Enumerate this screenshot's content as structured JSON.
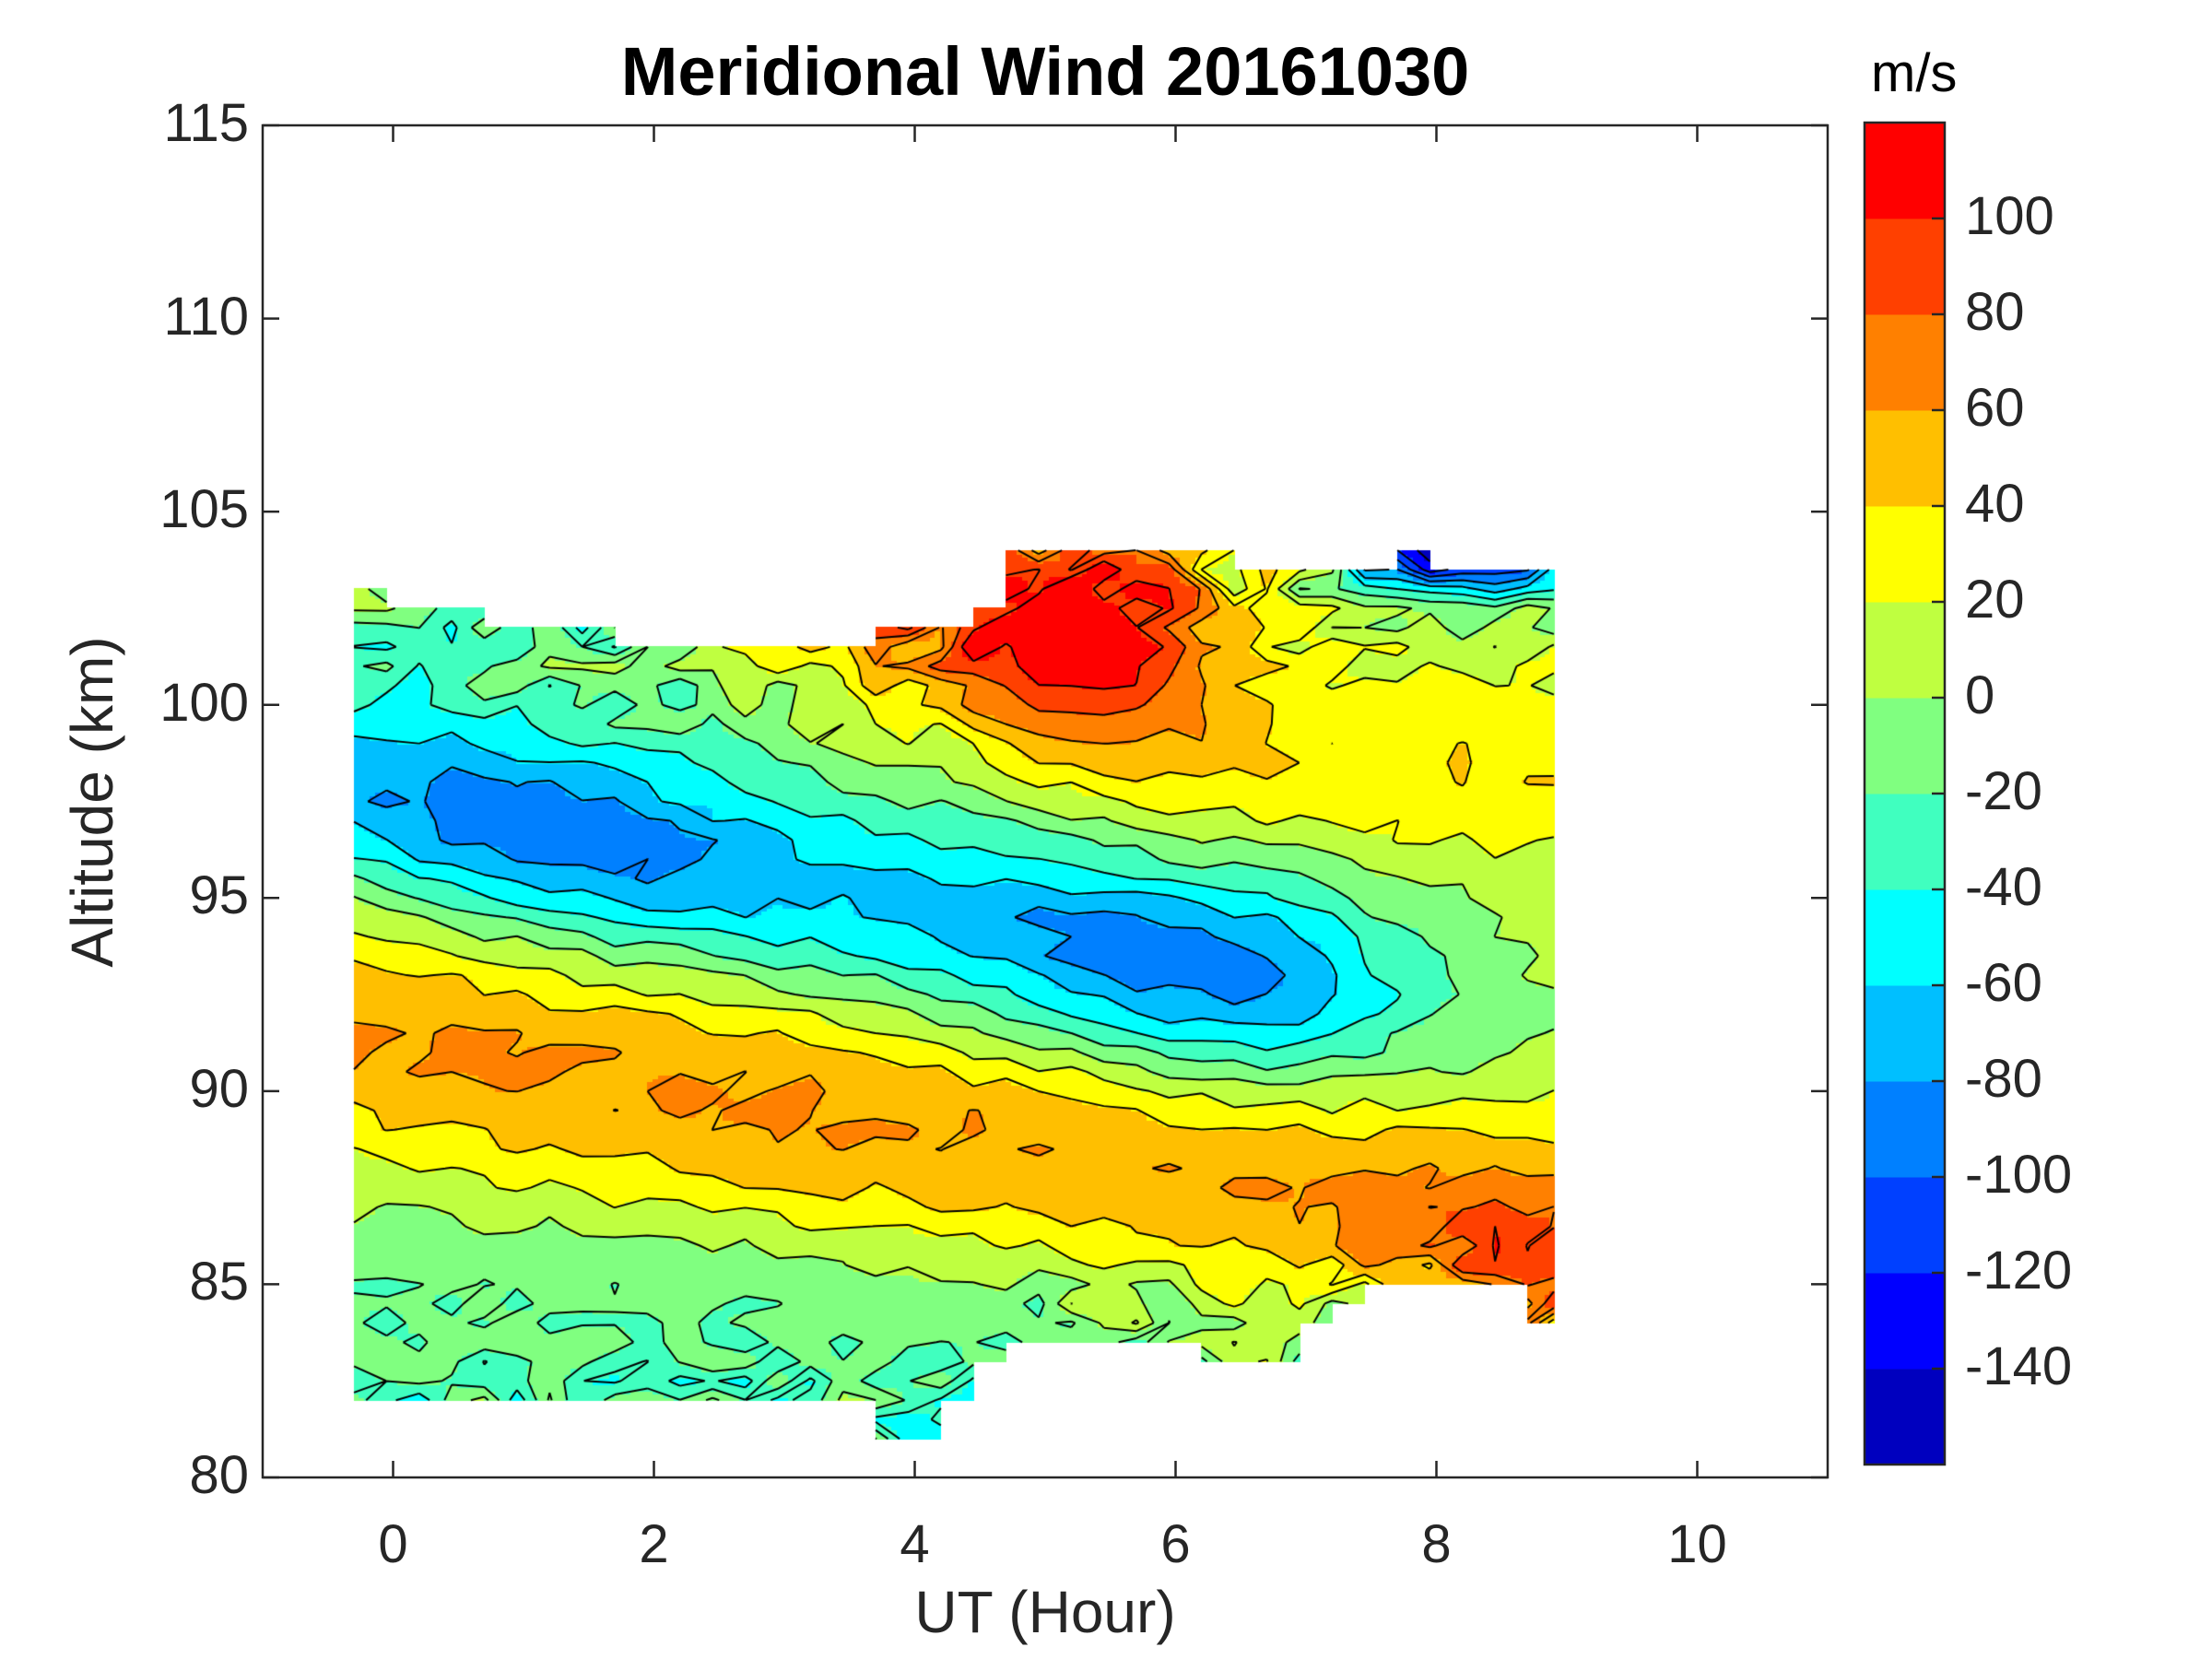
{
  "chart_data": {
    "type": "contour",
    "title": "Meridional Wind 20161030",
    "xlabel": "UT (Hour)",
    "ylabel": "Altitude (km)",
    "xlim": [
      -1,
      11
    ],
    "ylim": [
      80,
      115
    ],
    "xticks": [
      0,
      2,
      4,
      6,
      8,
      10
    ],
    "xtick_labels": [
      "0",
      "2",
      "4",
      "6",
      "8",
      "10"
    ],
    "yticks": [
      80,
      85,
      90,
      95,
      100,
      105,
      110,
      115
    ],
    "ytick_labels": [
      "80",
      "85",
      "90",
      "95",
      "100",
      "105",
      "110",
      "115"
    ],
    "grid": false,
    "colorbar": {
      "label": "m/s",
      "location": "right",
      "range": [
        -160,
        120
      ],
      "levels": [
        -160,
        -140,
        -120,
        -100,
        -80,
        -60,
        -40,
        -20,
        0,
        20,
        40,
        60,
        80,
        100,
        120
      ],
      "ticks": [
        100,
        80,
        60,
        40,
        20,
        0,
        -20,
        -40,
        -60,
        -80,
        -100,
        -120,
        -140
      ],
      "tick_labels": [
        "100",
        "80",
        "60",
        "40",
        "20",
        "0",
        "-20",
        "-40",
        "-60",
        "-80",
        "-100",
        "-120",
        "-140"
      ],
      "colors": [
        "#0000bf",
        "#0000ff",
        "#0040ff",
        "#0080ff",
        "#00bfff",
        "#00ffff",
        "#40ffbf",
        "#80ff80",
        "#bfff40",
        "#ffff00",
        "#ffbf00",
        "#ff8000",
        "#ff4000",
        "#ff0000"
      ]
    },
    "data_extent": {
      "time_range": [
        -0.3,
        8.9
      ],
      "time_step": 0.25,
      "top_altitude": [
        [
          -0.3,
          103.2
        ],
        [
          0.1,
          102.9
        ],
        [
          1.0,
          102.4
        ],
        [
          1.6,
          102.4
        ],
        [
          2.0,
          101.6
        ],
        [
          3.4,
          101.6
        ],
        [
          3.5,
          102.0
        ],
        [
          4.4,
          102.0
        ],
        [
          4.6,
          104.2
        ],
        [
          6.5,
          104.0
        ],
        [
          6.6,
          103.5
        ],
        [
          7.6,
          103.5
        ],
        [
          7.75,
          104.3
        ],
        [
          8.0,
          104.3
        ],
        [
          8.2,
          103.5
        ],
        [
          8.9,
          104.0
        ]
      ],
      "bottom_altitude": [
        [
          -0.3,
          81.7
        ],
        [
          0.0,
          81.5
        ],
        [
          1.0,
          82.0
        ],
        [
          2.0,
          81.5
        ],
        [
          3.4,
          82.0
        ],
        [
          3.6,
          81.0
        ],
        [
          4.0,
          80.7
        ],
        [
          4.3,
          81.0
        ],
        [
          4.6,
          82.5
        ],
        [
          5.0,
          83.5
        ],
        [
          6.0,
          83.5
        ],
        [
          6.1,
          83.0
        ],
        [
          7.0,
          83.0
        ],
        [
          7.2,
          84.0
        ],
        [
          8.0,
          85.0
        ],
        [
          8.5,
          85.0
        ],
        [
          8.7,
          84.0
        ],
        [
          8.9,
          83.7
        ]
      ]
    },
    "field_features": [
      {
        "name": "southward jet",
        "value_min": -95,
        "altitude_at_t0": 97.6,
        "altitude_slope_km_per_hr": -0.72,
        "time_span": [
          -0.3,
          7.2
        ]
      },
      {
        "name": "northward lower jet",
        "value_max": 90,
        "altitude_at_t0": 91.4,
        "altitude_slope_km_per_hr": -0.62,
        "time_span": [
          -0.3,
          8.9
        ]
      },
      {
        "name": "northward upper region",
        "value_max": 110,
        "center_time": 5.3,
        "center_altitude": 102,
        "time_span": [
          3.5,
          6.5
        ]
      },
      {
        "name": "northward upper plateau",
        "value": 35,
        "time_span": [
          6,
          8.9
        ],
        "altitude_range": [
          96,
          101
        ]
      },
      {
        "name": "near-zero lower layer",
        "value": -20,
        "altitude_range": [
          82,
          86
        ]
      }
    ]
  }
}
